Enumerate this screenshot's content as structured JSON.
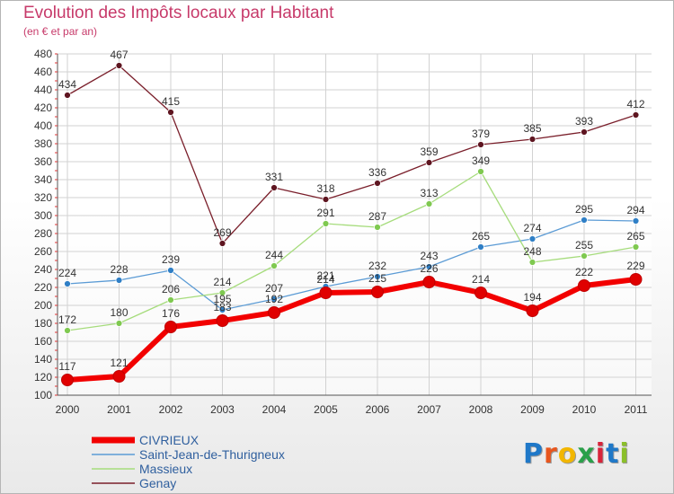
{
  "header": {
    "title": "Evolution des Impôts locaux par Habitant",
    "subtitle": "(en € et par an)"
  },
  "logo": {
    "text": "Proxiti",
    "letter_colors": [
      "#1f78c8",
      "#e8561e",
      "#f2b600",
      "#2aa04a",
      "#d8243a",
      "#1f78c8",
      "#8bbf2a"
    ]
  },
  "chart_data": {
    "type": "line",
    "title": "Evolution des Impôts locaux par Habitant",
    "subtitle": "(en € et par an)",
    "xlabel": "",
    "ylabel": "",
    "x": [
      "2000",
      "2001",
      "2002",
      "2003",
      "2004",
      "2005",
      "2006",
      "2007",
      "2008",
      "2009",
      "2010",
      "2011"
    ],
    "ylim": [
      100,
      480
    ],
    "yticks": [
      100,
      120,
      140,
      160,
      180,
      200,
      220,
      240,
      260,
      280,
      300,
      320,
      340,
      360,
      380,
      400,
      420,
      440,
      460,
      480
    ],
    "grid": true,
    "legend_position": "bottom-left",
    "series": [
      {
        "name": "Genay",
        "color": "#7a1f2b",
        "marker_color": "#5e1520",
        "values": [
          434,
          467,
          415,
          269,
          331,
          318,
          336,
          359,
          379,
          385,
          393,
          412
        ],
        "labels": [
          "434",
          "467",
          "415",
          "269",
          "331",
          "318",
          "336",
          "359",
          "379",
          "385",
          "393",
          "412"
        ]
      },
      {
        "name": "Saint-Jean-de-Thurigneux",
        "color": "#5b9bd5",
        "marker_color": "#2f7fc6",
        "values": [
          224,
          228,
          239,
          195,
          207,
          221,
          232,
          243,
          265,
          274,
          295,
          294
        ],
        "labels": [
          "224",
          "228",
          "239",
          "195",
          "207",
          "221",
          "232",
          "243",
          "265",
          "274",
          "295",
          "294"
        ]
      },
      {
        "name": "Massieux",
        "color": "#a6dc7c",
        "marker_color": "#7fc950",
        "values": [
          172,
          180,
          206,
          214,
          244,
          291,
          287,
          313,
          349,
          248,
          255,
          265
        ],
        "labels": [
          "172",
          "180",
          "206",
          "214",
          "244",
          "291",
          "287",
          "313",
          "349",
          "248",
          "255",
          "265"
        ]
      },
      {
        "name": "CIVRIEUX",
        "color": "#f20000",
        "marker_color": "#e00000",
        "values": [
          117,
          121,
          176,
          183,
          192,
          214,
          215,
          226,
          214,
          194,
          222,
          229
        ],
        "labels": [
          "117",
          "121",
          "176",
          "183",
          "192",
          "214",
          "215",
          "226",
          "214",
          "194",
          "222",
          "229"
        ]
      }
    ],
    "legend_order": [
      "CIVRIEUX",
      "Saint-Jean-de-Thurigneux",
      "Massieux",
      "Genay"
    ]
  }
}
